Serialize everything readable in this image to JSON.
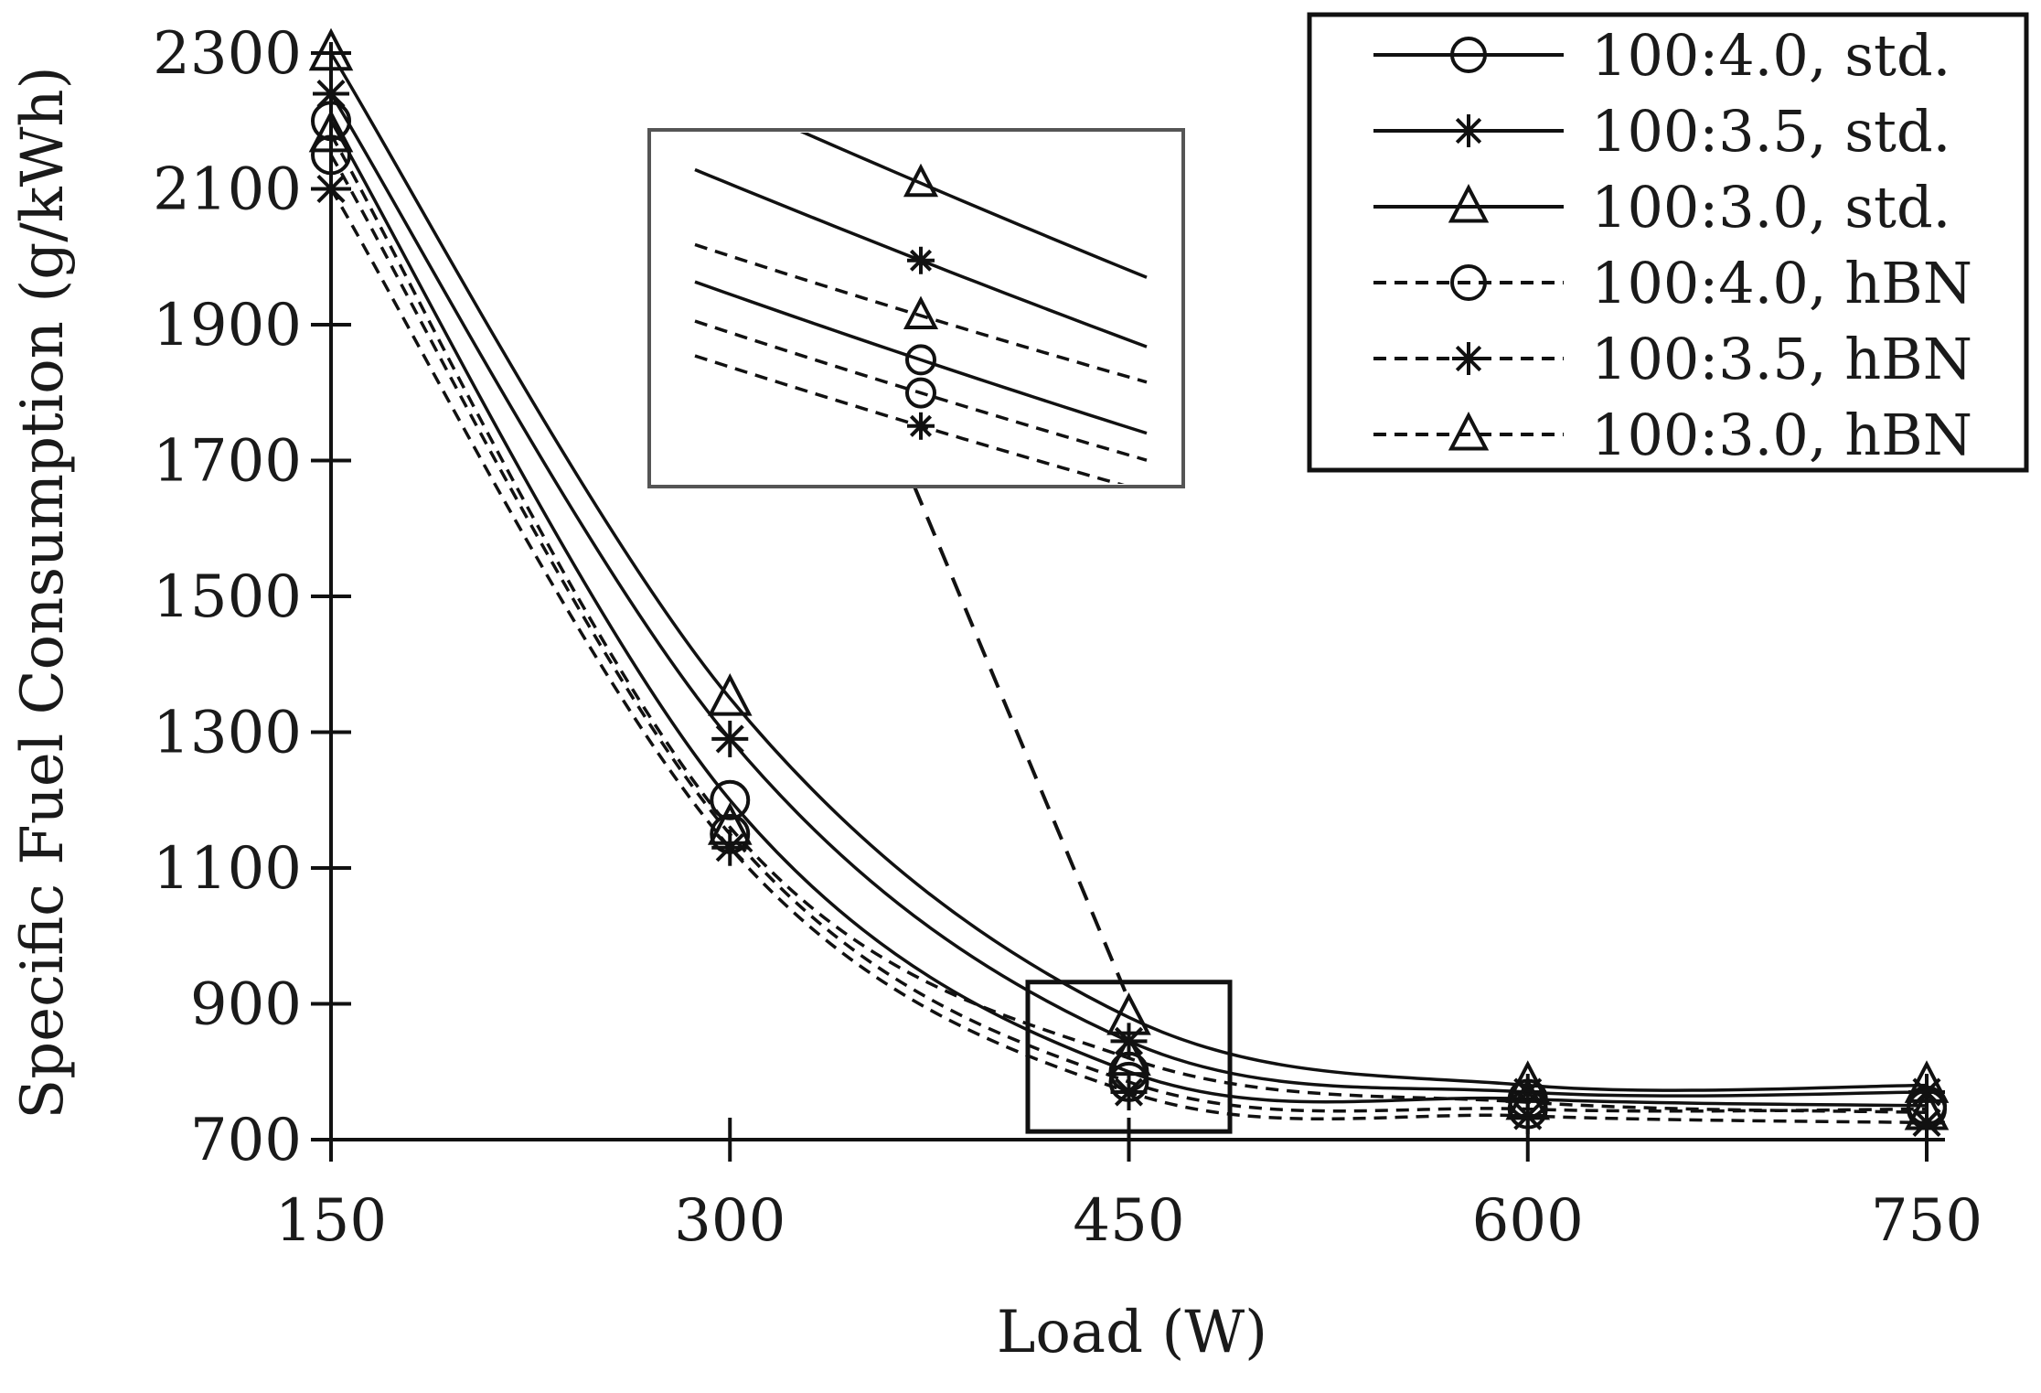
{
  "chart_data": {
    "type": "line",
    "title": "",
    "xlabel": "Load (W)",
    "ylabel": "Specific Fuel Consumption (g/kWh)",
    "x": [
      150,
      300,
      450,
      600,
      750
    ],
    "xticks": [
      "150",
      "300",
      "450",
      "600",
      "750"
    ],
    "yticks": [
      "700",
      "900",
      "1100",
      "1300",
      "1500",
      "1700",
      "1900",
      "2100",
      "2300"
    ],
    "xlim": [
      150,
      750
    ],
    "ylim": [
      700,
      2300
    ],
    "grid": false,
    "legend_position": "top-right",
    "inset": {
      "zoom_of_x": 450,
      "zoom_x_range": [
        412,
        488
      ],
      "zoom_y_range": [
        712,
        932
      ]
    },
    "series": [
      {
        "name": "100:4.0, std.",
        "marker": "circle",
        "line": "solid",
        "values": [
          2200,
          1200,
          800,
          760,
          750
        ]
      },
      {
        "name": "100:3.5, std.",
        "marker": "asterisk",
        "line": "solid",
        "values": [
          2240,
          1290,
          845,
          770,
          770
        ]
      },
      {
        "name": "100:3.0, std.",
        "marker": "triangle",
        "line": "solid",
        "values": [
          2300,
          1350,
          880,
          780,
          780
        ]
      },
      {
        "name": "100:4.0, hBN",
        "marker": "circle",
        "line": "dashed",
        "values": [
          2150,
          1150,
          785,
          745,
          745
        ]
      },
      {
        "name": "100:3.5, hBN",
        "marker": "asterisk",
        "line": "dashed",
        "values": [
          2100,
          1130,
          770,
          735,
          725
        ]
      },
      {
        "name": "100:3.0, hBN",
        "marker": "triangle",
        "line": "dashed",
        "values": [
          2180,
          1160,
          820,
          755,
          740
        ]
      }
    ]
  }
}
